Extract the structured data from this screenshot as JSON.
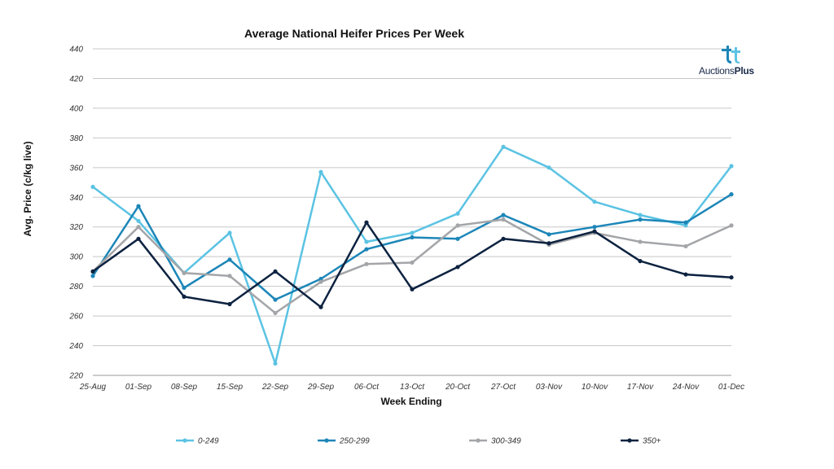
{
  "logo": {
    "name_regular": "Auctions",
    "name_bold": "Plus",
    "icon": "auctionsplus-logo-icon"
  },
  "colors": {
    "grid": "#c8c8c8",
    "axis": "#9a9a9a"
  },
  "chart_data": {
    "type": "line",
    "title": "Average National Heifer Prices Per Week",
    "xlabel": "Week Ending",
    "ylabel": "Avg. Price (c/kg live)",
    "ylim": [
      220,
      440
    ],
    "yticks": [
      220,
      240,
      260,
      280,
      300,
      320,
      340,
      360,
      380,
      400,
      420,
      440
    ],
    "grid": true,
    "legend_position": "bottom",
    "categories": [
      "25-Aug",
      "01-Sep",
      "08-Sep",
      "15-Sep",
      "22-Sep",
      "29-Sep",
      "06-Oct",
      "13-Oct",
      "20-Oct",
      "27-Oct",
      "03-Nov",
      "10-Nov",
      "17-Nov",
      "24-Nov",
      "01-Dec"
    ],
    "series": [
      {
        "name": "0-249",
        "color": "#5bc3e3",
        "values": [
          347,
          324,
          289,
          316,
          228,
          357,
          310,
          316,
          329,
          374,
          360,
          337,
          328,
          321,
          361
        ]
      },
      {
        "name": "250-299",
        "color": "#1c86b8",
        "values": [
          287,
          334,
          279,
          298,
          271,
          285,
          305,
          313,
          312,
          328,
          315,
          320,
          325,
          323,
          342
        ]
      },
      {
        "name": "300-349",
        "color": "#a3a5a8",
        "values": [
          290,
          320,
          289,
          287,
          262,
          283,
          295,
          296,
          321,
          325,
          308,
          316,
          310,
          307,
          321
        ]
      },
      {
        "name": "350+",
        "color": "#0d2240",
        "values": [
          290,
          312,
          273,
          268,
          290,
          266,
          323,
          278,
          293,
          312,
          309,
          317,
          297,
          288,
          286
        ]
      }
    ]
  }
}
